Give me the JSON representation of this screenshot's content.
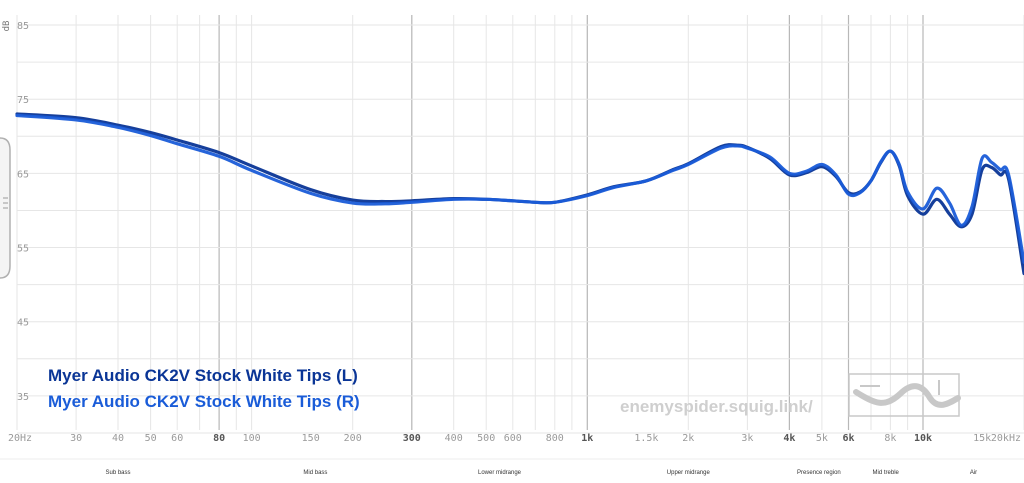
{
  "chart_data": {
    "type": "line",
    "ylabel": "dB",
    "ylim": [
      30,
      85
    ],
    "xlim": [
      20,
      20000
    ],
    "x_scale": "log",
    "y_ticks": [
      35,
      45,
      55,
      65,
      75,
      85
    ],
    "x_ticks": [
      {
        "value": 20,
        "label": "20Hz",
        "major": false
      },
      {
        "value": 30,
        "label": "30",
        "major": false
      },
      {
        "value": 40,
        "label": "40",
        "major": false
      },
      {
        "value": 50,
        "label": "50",
        "major": false
      },
      {
        "value": 60,
        "label": "60",
        "major": false
      },
      {
        "value": 80,
        "label": "80",
        "major": true
      },
      {
        "value": 100,
        "label": "100",
        "major": false
      },
      {
        "value": 150,
        "label": "150",
        "major": false
      },
      {
        "value": 200,
        "label": "200",
        "major": false
      },
      {
        "value": 300,
        "label": "300",
        "major": true
      },
      {
        "value": 400,
        "label": "400",
        "major": false
      },
      {
        "value": 500,
        "label": "500",
        "major": false
      },
      {
        "value": 600,
        "label": "600",
        "major": false
      },
      {
        "value": 800,
        "label": "800",
        "major": false
      },
      {
        "value": 1000,
        "label": "1k",
        "major": true
      },
      {
        "value": 1500,
        "label": "1.5k",
        "major": false
      },
      {
        "value": 2000,
        "label": "2k",
        "major": false
      },
      {
        "value": 3000,
        "label": "3k",
        "major": false
      },
      {
        "value": 4000,
        "label": "4k",
        "major": true
      },
      {
        "value": 5000,
        "label": "5k",
        "major": false
      },
      {
        "value": 6000,
        "label": "6k",
        "major": true
      },
      {
        "value": 8000,
        "label": "8k",
        "major": false
      },
      {
        "value": 10000,
        "label": "10k",
        "major": true
      },
      {
        "value": 15000,
        "label": "15k",
        "major": false
      },
      {
        "value": 20000,
        "label": "20kHz",
        "major": false
      }
    ],
    "regions": [
      {
        "label": "Sub bass",
        "from": 20,
        "to": 80
      },
      {
        "label": "Mid bass",
        "from": 80,
        "to": 300
      },
      {
        "label": "Lower midrange",
        "from": 300,
        "to": 1000
      },
      {
        "label": "Upper midrange",
        "from": 1000,
        "to": 4000
      },
      {
        "label": "Presence region",
        "from": 4000,
        "to": 6000
      },
      {
        "label": "Mid treble",
        "from": 6000,
        "to": 10000
      },
      {
        "label": "Air",
        "from": 10000,
        "to": 20000
      }
    ],
    "legend_placement": "bottom-left",
    "series": [
      {
        "name": "Myer Audio CK2V Stock White Tips (L)",
        "color": "#0a3596",
        "x": [
          20,
          30,
          40,
          50,
          60,
          80,
          100,
          150,
          200,
          250,
          300,
          400,
          500,
          600,
          700,
          800,
          1000,
          1200,
          1500,
          1800,
          2000,
          2500,
          2800,
          3000,
          3500,
          4000,
          4500,
          5000,
          5500,
          6000,
          6500,
          7000,
          7500,
          8000,
          8500,
          9000,
          10000,
          11000,
          12000,
          13000,
          14000,
          15000,
          16000,
          17000,
          18000,
          20000
        ],
        "y": [
          73,
          72.5,
          71.5,
          70.5,
          69.5,
          67.8,
          66,
          62.8,
          61.4,
          61.2,
          61.3,
          61.6,
          61.5,
          61.3,
          61.1,
          61.1,
          62.1,
          63.2,
          64,
          65.5,
          66.3,
          68.6,
          68.8,
          68.5,
          67,
          64.8,
          65.1,
          65.9,
          64.6,
          62.4,
          62.5,
          64,
          66.5,
          68,
          66,
          62,
          59.5,
          61.5,
          59.5,
          57.8,
          59.5,
          65.5,
          65.8,
          64.8,
          64.2,
          51.5
        ]
      },
      {
        "name": "Myer Audio CK2V Stock White Tips (R)",
        "color": "#1a5cd8",
        "x": [
          20,
          30,
          40,
          50,
          60,
          80,
          100,
          150,
          200,
          250,
          300,
          400,
          500,
          600,
          700,
          800,
          1000,
          1200,
          1500,
          1800,
          2000,
          2500,
          2800,
          3000,
          3500,
          4000,
          4500,
          5000,
          5500,
          6000,
          6500,
          7000,
          7500,
          8000,
          8500,
          9000,
          10000,
          11000,
          12000,
          13000,
          14000,
          15000,
          16000,
          17000,
          18000,
          20000
        ],
        "y": [
          72.8,
          72.2,
          71.2,
          70.1,
          69,
          67.3,
          65.4,
          62.3,
          61,
          60.9,
          61.1,
          61.5,
          61.5,
          61.3,
          61.1,
          61.1,
          62,
          63.1,
          64,
          65.4,
          66.2,
          68.4,
          68.7,
          68.4,
          67.2,
          65,
          65.3,
          66.2,
          64.8,
          62.2,
          62.4,
          64,
          66.6,
          68,
          66.2,
          62.5,
          60.2,
          63,
          61,
          58,
          60.5,
          67,
          66.5,
          65.5,
          64.8,
          53
        ]
      }
    ]
  },
  "watermark": {
    "text": "enemyspider.squig.link/"
  },
  "colors": {
    "grid_minor": "#e6e6e6",
    "grid_major": "#b8b8b8",
    "background": "#ffffff"
  }
}
